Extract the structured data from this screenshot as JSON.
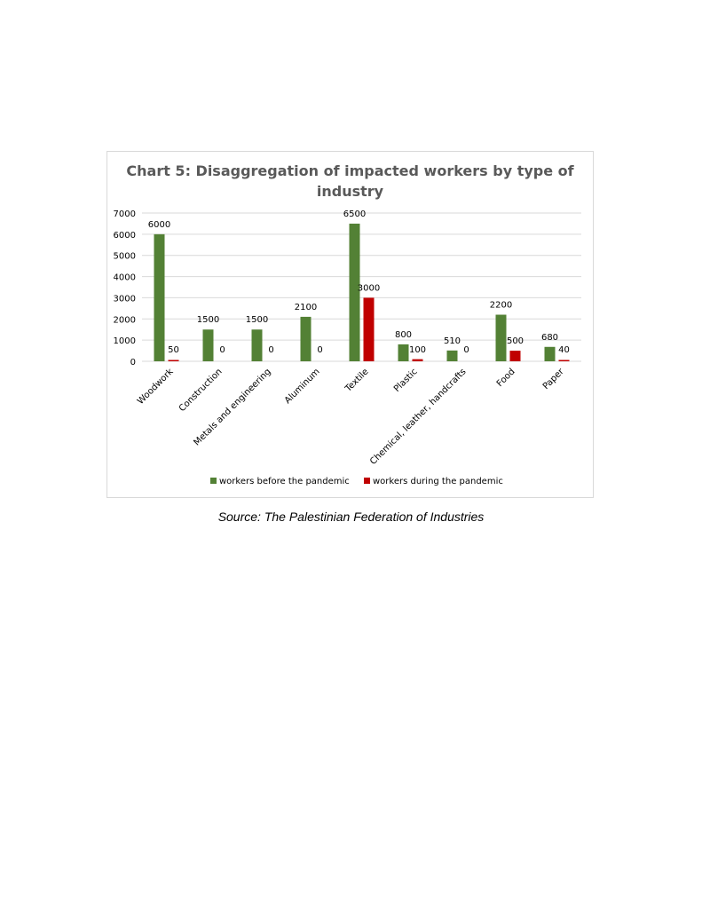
{
  "chart_data": {
    "type": "bar",
    "title": "Chart 5: Disaggregation of impacted workers by type of industry",
    "categories": [
      "Woodwork",
      "Construction",
      "Metals and engineering",
      "Aluminum",
      "Textile",
      "Plastic",
      "Chemical, leather, handcrafts",
      "Food",
      "Paper"
    ],
    "series": [
      {
        "name": "workers before the pandemic",
        "color": "#538135",
        "values": [
          6000,
          1500,
          1500,
          2100,
          6500,
          800,
          510,
          2200,
          680
        ]
      },
      {
        "name": "workers during the pandemic",
        "color": "#c00000",
        "values": [
          50,
          0,
          0,
          0,
          3000,
          100,
          0,
          500,
          40
        ]
      }
    ],
    "ylim": [
      0,
      7000
    ],
    "yticks": [
      0,
      1000,
      2000,
      3000,
      4000,
      5000,
      6000,
      7000
    ],
    "xlabel": "",
    "ylabel": "",
    "grid": true,
    "legend_position": "bottom"
  },
  "source": "Source: The Palestinian Federation of Industries"
}
